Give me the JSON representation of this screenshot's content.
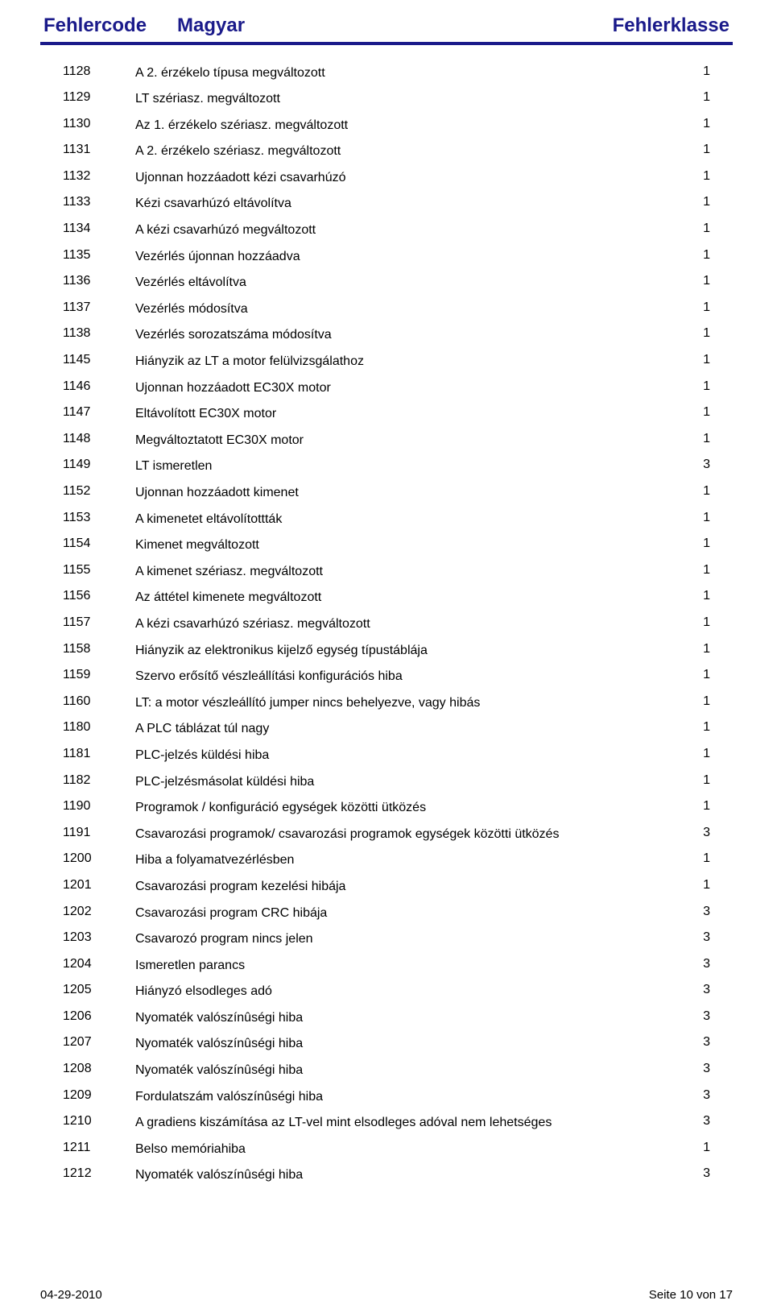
{
  "header": {
    "col1": "Fehlercode",
    "col2": "Magyar",
    "col3": "Fehlerklasse"
  },
  "rows": [
    {
      "code": "1128",
      "desc": "A 2. érzékelo típusa megváltozott",
      "klass": "1"
    },
    {
      "code": "1129",
      "desc": "LT szériasz. megváltozott",
      "klass": "1"
    },
    {
      "code": "1130",
      "desc": "Az 1. érzékelo szériasz. megváltozott",
      "klass": "1"
    },
    {
      "code": "1131",
      "desc": "A 2. érzékelo szériasz. megváltozott",
      "klass": "1"
    },
    {
      "code": "1132",
      "desc": "Ujonnan hozzáadott kézi csavarhúzó",
      "klass": "1"
    },
    {
      "code": "1133",
      "desc": "Kézi csavarhúzó eltávolítva",
      "klass": "1"
    },
    {
      "code": "1134",
      "desc": "A kézi csavarhúzó megváltozott",
      "klass": "1"
    },
    {
      "code": "1135",
      "desc": "Vezérlés újonnan hozzáadva",
      "klass": "1"
    },
    {
      "code": "1136",
      "desc": "Vezérlés eltávolítva",
      "klass": "1"
    },
    {
      "code": "1137",
      "desc": "Vezérlés módosítva",
      "klass": "1"
    },
    {
      "code": "1138",
      "desc": "Vezérlés sorozatszáma módosítva",
      "klass": "1"
    },
    {
      "code": "1145",
      "desc": "Hiányzik az LT a motor felülvizsgálathoz",
      "klass": "1"
    },
    {
      "code": "1146",
      "desc": "Ujonnan hozzáadott EC30X motor",
      "klass": "1"
    },
    {
      "code": "1147",
      "desc": "Eltávolított EC30X motor",
      "klass": "1"
    },
    {
      "code": "1148",
      "desc": "Megváltoztatott EC30X motor",
      "klass": "1"
    },
    {
      "code": "1149",
      "desc": "LT ismeretlen",
      "klass": "3"
    },
    {
      "code": "1152",
      "desc": "Ujonnan hozzáadott kimenet",
      "klass": "1"
    },
    {
      "code": "1153",
      "desc": "A kimenetet eltávolítottták",
      "klass": "1"
    },
    {
      "code": "1154",
      "desc": "Kimenet megváltozott",
      "klass": "1"
    },
    {
      "code": "1155",
      "desc": "A kimenet szériasz. megváltozott",
      "klass": "1"
    },
    {
      "code": "1156",
      "desc": "Az áttétel kimenete megváltozott",
      "klass": "1"
    },
    {
      "code": "1157",
      "desc": "A kézi csavarhúzó szériasz. megváltozott",
      "klass": "1"
    },
    {
      "code": "1158",
      "desc": "Hiányzik az elektronikus  kijelző egység típustáblája",
      "klass": "1"
    },
    {
      "code": "1159",
      "desc": "Szervo erősítő vészleállítási konfigurációs hiba",
      "klass": "1"
    },
    {
      "code": "1160",
      "desc": "LT: a motor vészleállító jumper nincs behelyezve, vagy hibás",
      "klass": "1"
    },
    {
      "code": "1180",
      "desc": "A PLC táblázat túl nagy",
      "klass": "1"
    },
    {
      "code": "1181",
      "desc": "PLC-jelzés küldési hiba",
      "klass": "1"
    },
    {
      "code": "1182",
      "desc": "PLC-jelzésmásolat küldési hiba",
      "klass": "1"
    },
    {
      "code": "1190",
      "desc": "Programok / konfiguráció egységek közötti ütközés",
      "klass": "1"
    },
    {
      "code": "1191",
      "desc": "Csavarozási programok/ csavarozási programok egységek közötti ütközés",
      "klass": "3"
    },
    {
      "code": "1200",
      "desc": "Hiba a folyamatvezérlésben",
      "klass": "1"
    },
    {
      "code": "1201",
      "desc": "Csavarozási program kezelési hibája",
      "klass": "1"
    },
    {
      "code": "1202",
      "desc": "Csavarozási program CRC hibája",
      "klass": "3"
    },
    {
      "code": "1203",
      "desc": "Csavarozó program nincs jelen",
      "klass": "3"
    },
    {
      "code": "1204",
      "desc": "Ismeretlen parancs",
      "klass": "3"
    },
    {
      "code": "1205",
      "desc": "Hiányzó elsodleges adó",
      "klass": "3"
    },
    {
      "code": "1206",
      "desc": "Nyomaték valószínûségi hiba",
      "klass": "3"
    },
    {
      "code": "1207",
      "desc": "Nyomaték valószínûségi hiba",
      "klass": "3"
    },
    {
      "code": "1208",
      "desc": "Nyomaték valószínûségi hiba",
      "klass": "3"
    },
    {
      "code": "1209",
      "desc": "Fordulatszám valószínûségi hiba",
      "klass": "3"
    },
    {
      "code": "1210",
      "desc": "A gradiens kiszámítása az LT-vel mint elsodleges adóval nem lehetséges",
      "klass": "3"
    },
    {
      "code": "1211",
      "desc": "Belso memóriahiba",
      "klass": "1"
    },
    {
      "code": "1212",
      "desc": "Nyomaték valószínûségi hiba",
      "klass": "3"
    }
  ],
  "footer": {
    "left": "04-29-2010",
    "right": "Seite 10 von 17"
  }
}
